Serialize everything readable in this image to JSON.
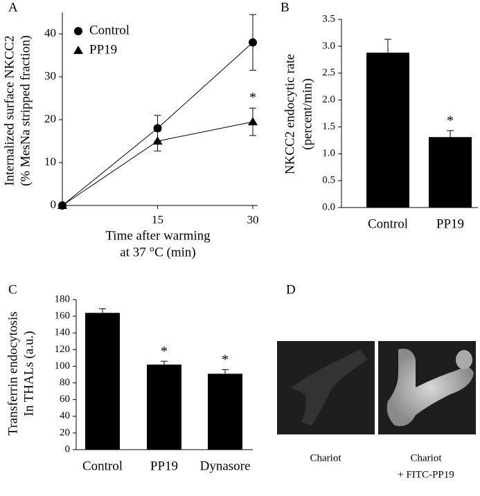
{
  "chart_data": [
    {
      "type": "line",
      "panel": "A",
      "y_label": [
        "Internalized surface NKCC2",
        "(% MesNa stripped fraction)"
      ],
      "x_label": [
        "Time after warming",
        "at 37 °C (min)"
      ],
      "x": [
        0,
        15,
        30
      ],
      "xlim": [
        0,
        30
      ],
      "xticks": [
        15,
        30
      ],
      "ylim": [
        0,
        45
      ],
      "yticks": [
        0,
        10,
        20,
        30,
        40
      ],
      "series": [
        {
          "name": "Control",
          "color": "#000000",
          "marker": "circle",
          "values": [
            0,
            18,
            38
          ],
          "errors": [
            0,
            3,
            6.5
          ],
          "significance": [
            null,
            null,
            null
          ]
        },
        {
          "name": "PP19",
          "color": "#000000",
          "marker": "triangle",
          "values": [
            0,
            15,
            19.5
          ],
          "errors": [
            0,
            2.3,
            3.2
          ],
          "significance": [
            null,
            null,
            "*"
          ]
        }
      ]
    },
    {
      "type": "bar",
      "panel": "B",
      "y_label": [
        "NKCC2 endocytic rate",
        "(percent/min)"
      ],
      "categories": [
        "Control",
        "PP19"
      ],
      "values": [
        2.88,
        1.31
      ],
      "errors": [
        0.25,
        0.12
      ],
      "significance": [
        null,
        "*"
      ],
      "color": "#000000",
      "ylim": [
        0,
        3.5
      ],
      "yticks": [
        {
          "value": 0,
          "label": "0.0"
        },
        {
          "value": 0.5,
          "label": "0.5"
        },
        {
          "value": 1,
          "label": "1.0"
        },
        {
          "value": 1.5,
          "label": "1.5"
        },
        {
          "value": 2,
          "label": "2.0"
        },
        {
          "value": 2.5,
          "label": "2.5"
        },
        {
          "value": 3,
          "label": "3.0"
        },
        {
          "value": 3.5,
          "label": "3.5"
        }
      ]
    },
    {
      "type": "bar",
      "panel": "C",
      "y_label": [
        "Transferrin endocytosis",
        "In THALs (a.u.)"
      ],
      "categories": [
        "Control",
        "PP19",
        "Dynasore"
      ],
      "values": [
        164,
        102,
        91
      ],
      "errors": [
        5,
        4,
        5
      ],
      "significance": [
        null,
        "*",
        "*"
      ],
      "color": "#000000",
      "ylim": [
        0,
        180
      ],
      "yticks": [
        0,
        20,
        40,
        60,
        80,
        100,
        120,
        140,
        160,
        180
      ]
    }
  ],
  "panel_d": {
    "label": "D",
    "captions": [
      [
        "Chariot"
      ],
      [
        "Chariot",
        "+ FITC-PP19"
      ]
    ]
  }
}
